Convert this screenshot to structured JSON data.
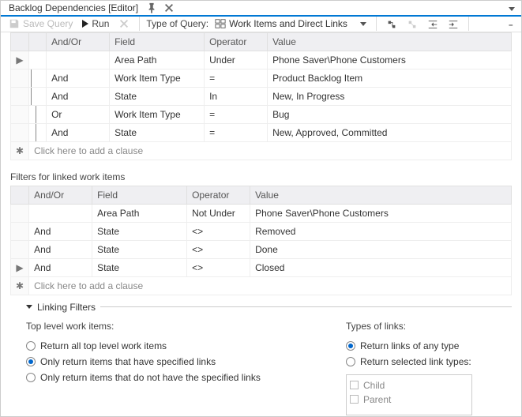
{
  "title": "Backlog Dependencies [Editor]",
  "toolbar": {
    "save": "Save Query",
    "run": "Run",
    "typeLabel": "Type of Query:",
    "typeValue": "Work Items and Direct Links"
  },
  "topGrid": {
    "headers": {
      "andor": "And/Or",
      "field": "Field",
      "operator": "Operator",
      "value": "Value"
    },
    "rows": [
      {
        "marker": "▶",
        "indent": 0,
        "andor": "",
        "field": "Area Path",
        "op": "Under",
        "val": "Phone Saver\\Phone Customers"
      },
      {
        "marker": "",
        "indent": 1,
        "andor": "And",
        "field": "Work Item Type",
        "op": "=",
        "val": "Product Backlog Item"
      },
      {
        "marker": "",
        "indent": 1,
        "andor": "And",
        "field": "State",
        "op": "In",
        "val": "New, In Progress"
      },
      {
        "marker": "",
        "indent": 2,
        "andor": "Or",
        "field": "Work Item Type",
        "op": "=",
        "val": "Bug"
      },
      {
        "marker": "",
        "indent": 2,
        "andor": "And",
        "field": "State",
        "op": "=",
        "val": "New, Approved, Committed"
      }
    ],
    "newClause": "Click here to add a clause"
  },
  "linkedTitle": "Filters for linked work items",
  "linkedGrid": {
    "headers": {
      "andor": "And/Or",
      "field": "Field",
      "operator": "Operator",
      "value": "Value"
    },
    "rows": [
      {
        "marker": "",
        "andor": "",
        "field": "Area Path",
        "op": "Not Under",
        "val": "Phone Saver\\Phone Customers"
      },
      {
        "marker": "",
        "andor": "And",
        "field": "State",
        "op": "<>",
        "val": "Removed"
      },
      {
        "marker": "",
        "andor": "And",
        "field": "State",
        "op": "<>",
        "val": "Done"
      },
      {
        "marker": "▶",
        "andor": "And",
        "field": "State",
        "op": "<>",
        "val": "Closed"
      }
    ],
    "newClause": "Click here to add a clause"
  },
  "linking": {
    "header": "Linking Filters",
    "leftLabel": "Top level work items:",
    "leftOptions": [
      "Return all top level work items",
      "Only return items that have specified links",
      "Only return items that do not have the specified links"
    ],
    "leftSelected": 1,
    "rightLabel": "Types of links:",
    "rightOptions": [
      "Return links of any type",
      "Return selected link types:"
    ],
    "rightSelected": 0,
    "linkTypes": [
      "Child",
      "Parent"
    ]
  }
}
